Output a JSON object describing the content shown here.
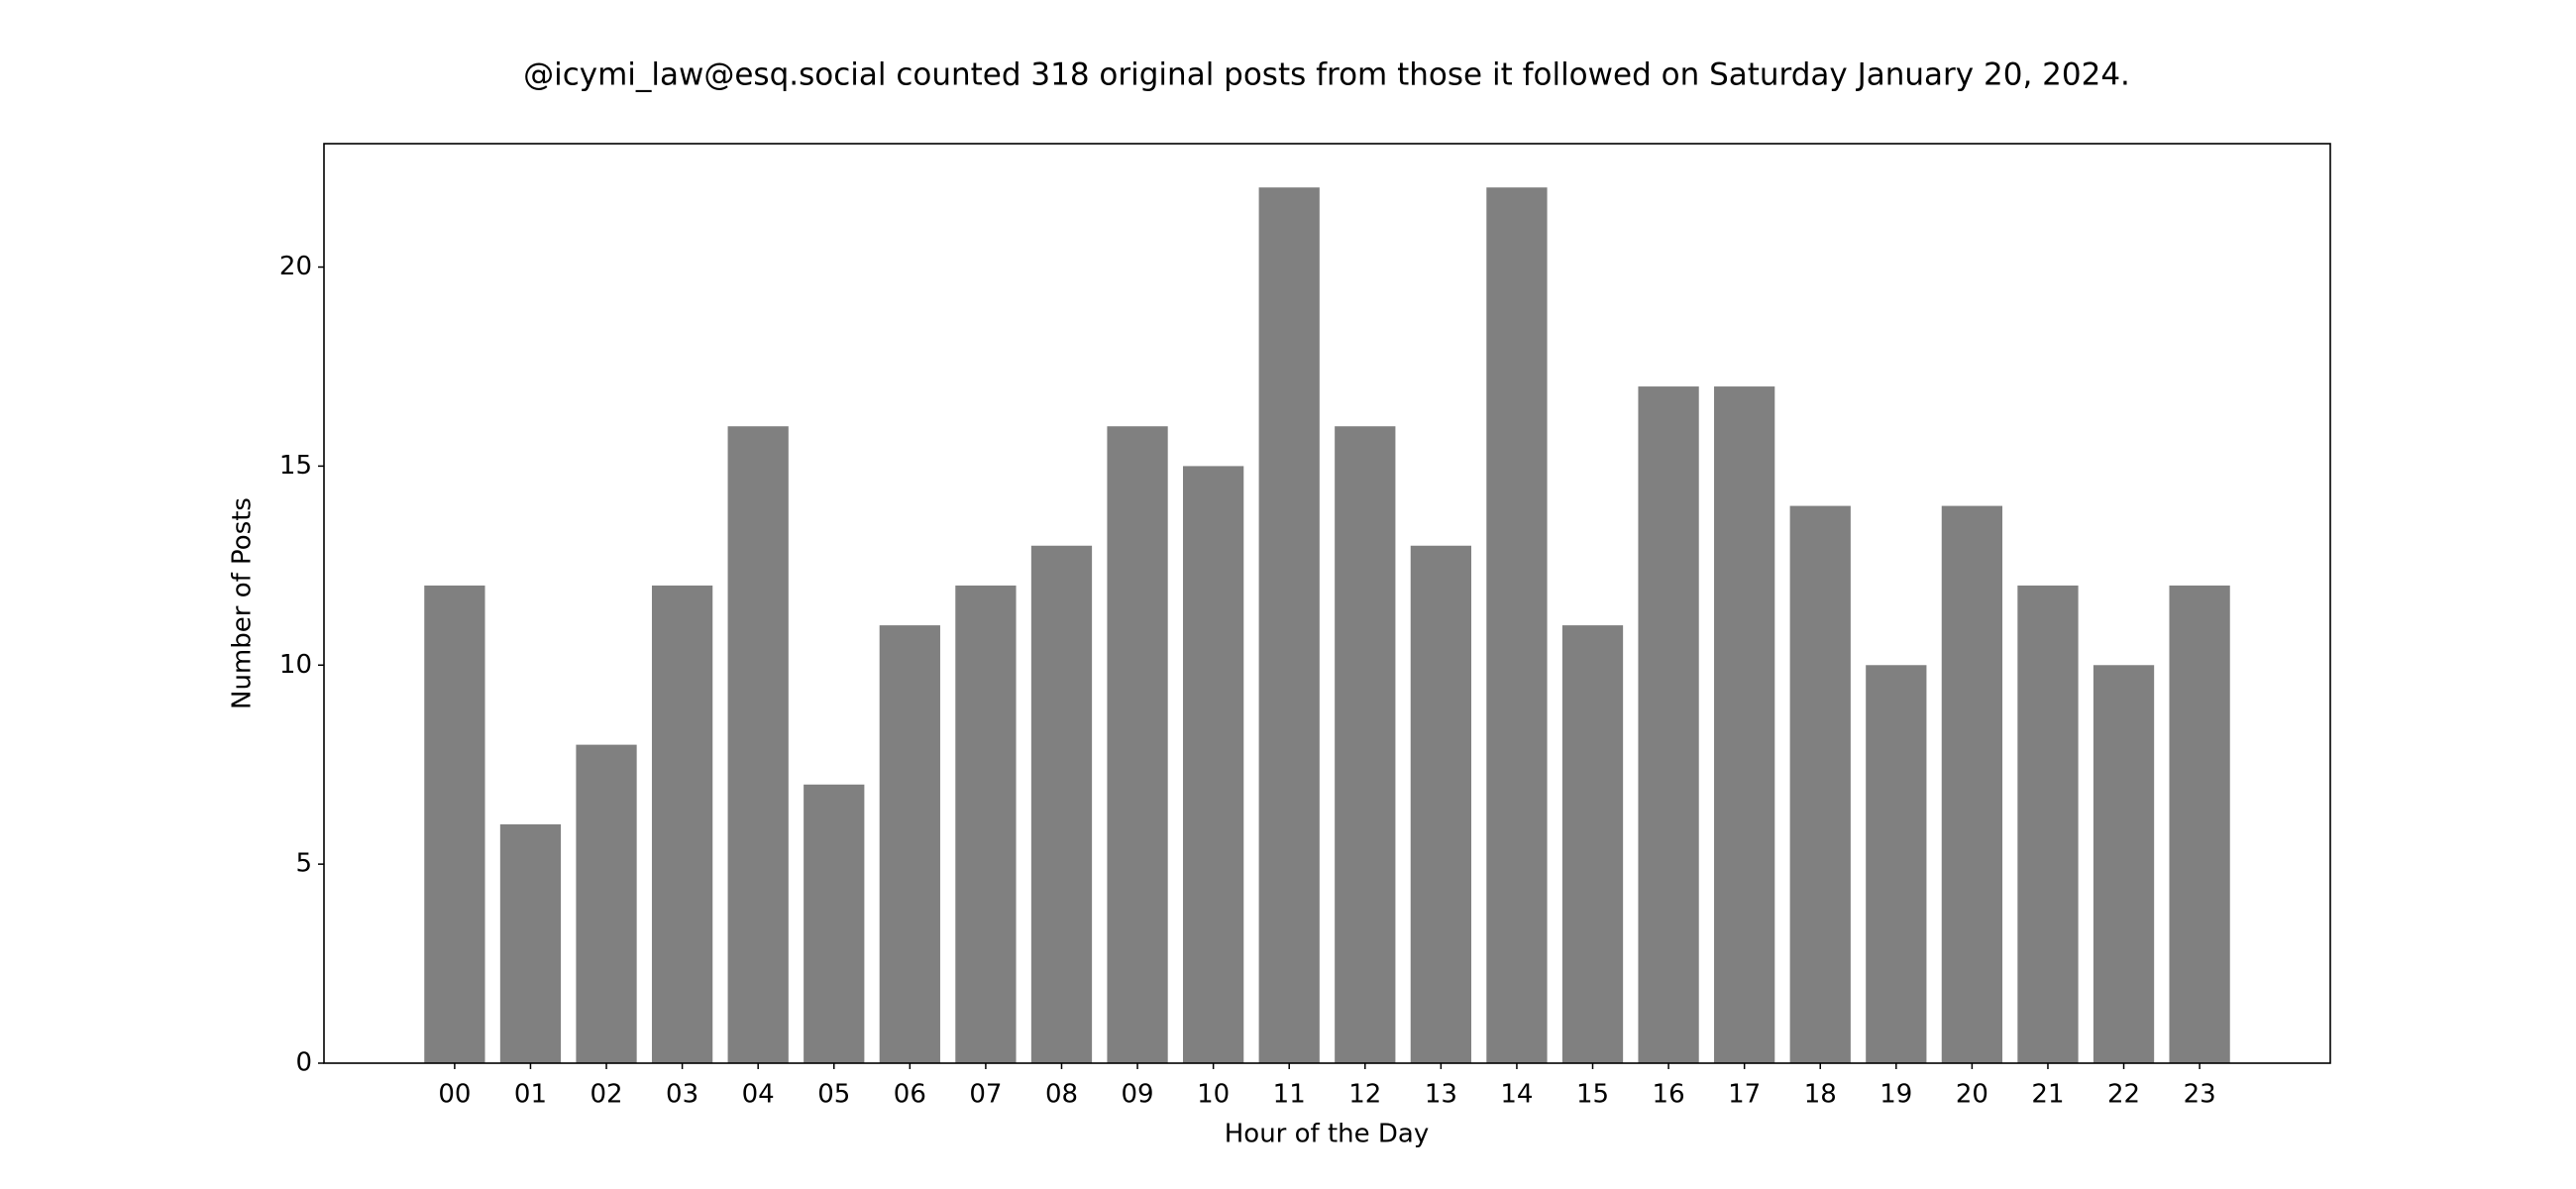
{
  "chart_data": {
    "type": "bar",
    "title": "@icymi_law@esq.social counted 318 original posts from those it followed on Saturday January 20, 2024.",
    "xlabel": "Hour of the Day",
    "ylabel": "Number of Posts",
    "categories": [
      "00",
      "01",
      "02",
      "03",
      "04",
      "05",
      "06",
      "07",
      "08",
      "09",
      "10",
      "11",
      "12",
      "13",
      "14",
      "15",
      "16",
      "17",
      "18",
      "19",
      "20",
      "21",
      "22",
      "23"
    ],
    "values": [
      12,
      6,
      8,
      12,
      16,
      7,
      11,
      12,
      13,
      16,
      15,
      22,
      16,
      13,
      22,
      11,
      17,
      17,
      14,
      10,
      14,
      12,
      10,
      12
    ],
    "color": "#808080",
    "ylim": [
      0,
      23.1
    ],
    "yticks": [
      0,
      5,
      10,
      15,
      20
    ],
    "grid": false
  }
}
